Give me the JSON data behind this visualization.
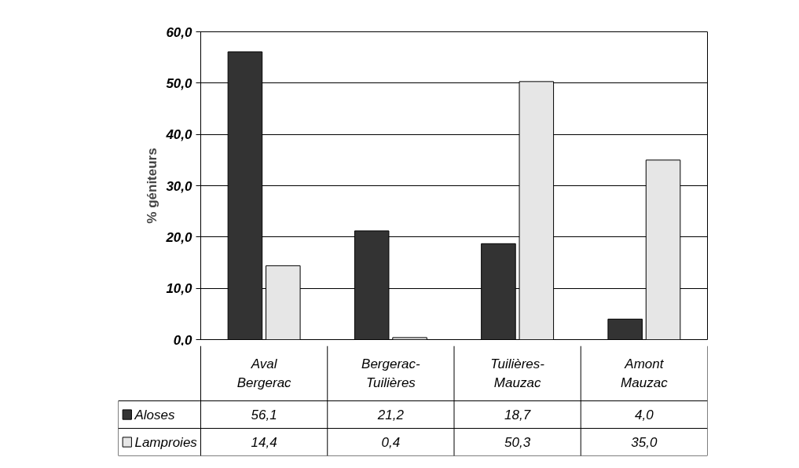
{
  "chart_data": {
    "type": "bar",
    "ylabel": "% géniteurs",
    "categories": [
      "Aval\nBergerac",
      "Bergerac-\nTuilières",
      "Tuilières-\nMauzac",
      "Amont\nMauzac"
    ],
    "series": [
      {
        "name": "Aloses",
        "color": "#333333",
        "values": [
          56.1,
          21.2,
          18.7,
          4.0
        ],
        "value_labels": [
          "56,1",
          "21,2",
          "18,7",
          "4,0"
        ]
      },
      {
        "name": "Lamproies",
        "color": "#e6e6e6",
        "values": [
          14.4,
          0.4,
          50.3,
          35.0
        ],
        "value_labels": [
          "14,4",
          "0,4",
          "50,3",
          "35,0"
        ]
      }
    ],
    "ylim": [
      0,
      60
    ],
    "yticks": [
      {
        "value": 0,
        "label": "0,0"
      },
      {
        "value": 10,
        "label": "10,0"
      },
      {
        "value": 20,
        "label": "20,0"
      },
      {
        "value": 30,
        "label": "30,0"
      },
      {
        "value": 40,
        "label": "40,0"
      },
      {
        "value": 50,
        "label": "50,0"
      },
      {
        "value": 60,
        "label": "60,0"
      }
    ],
    "grid": "y",
    "legend": "bottom"
  }
}
